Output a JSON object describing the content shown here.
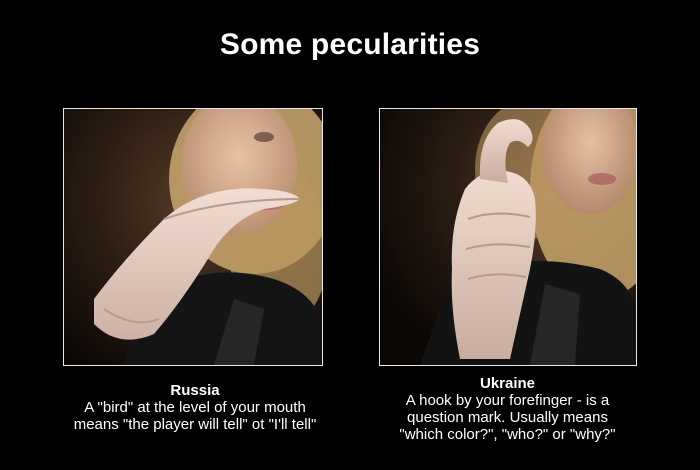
{
  "title": "Some pecularities",
  "panels": [
    {
      "country": "Russia",
      "line1": "A \"bird\" at the level of your mouth",
      "line2": "means \"the player will tell\" ot \"I'll tell\""
    },
    {
      "country": "Ukraine",
      "line1": "A hook by your forefinger - is a",
      "line2": "question mark. Usually means",
      "line3": "\"which color?\", \"who?\" or \"why?\""
    }
  ],
  "colors": {
    "background": "#000000",
    "text": "#ffffff",
    "frame": "#e8e8e8",
    "glove": "#ddc7bd",
    "hair": "#d9bf8a"
  }
}
